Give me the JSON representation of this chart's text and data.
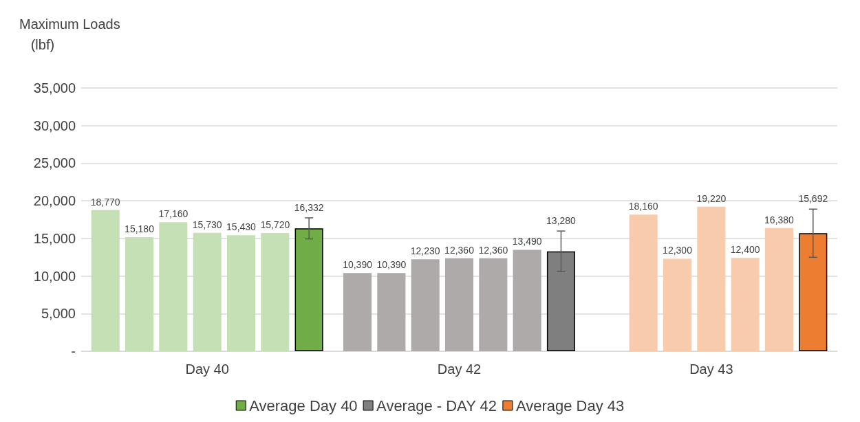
{
  "chart_data": {
    "type": "bar",
    "ylabel": "Maximum Loads (lbf)",
    "categories": [
      "Day 40",
      "Day 42",
      "Day 43"
    ],
    "series": [
      {
        "colors": [
          "#c5e0b4",
          "#aeaaaa",
          "#f8cbad"
        ],
        "values": [
          18770,
          10390,
          null
        ],
        "value_labels": [
          "18,770",
          "10,390",
          null
        ]
      },
      {
        "colors": [
          "#c5e0b4",
          "#aeaaaa",
          "#f8cbad"
        ],
        "values": [
          15180,
          10390,
          18160
        ],
        "value_labels": [
          "15,180",
          "10,390",
          "18,160"
        ]
      },
      {
        "colors": [
          "#c5e0b4",
          "#aeaaaa",
          "#f8cbad"
        ],
        "values": [
          17160,
          12230,
          12300
        ],
        "value_labels": [
          "17,160",
          "12,230",
          "12,300"
        ]
      },
      {
        "colors": [
          "#c5e0b4",
          "#aeaaaa",
          "#f8cbad"
        ],
        "values": [
          15730,
          12360,
          19220
        ],
        "value_labels": [
          "15,730",
          "12,360",
          "19,220"
        ]
      },
      {
        "colors": [
          "#c5e0b4",
          "#aeaaaa",
          "#f8cbad"
        ],
        "values": [
          15430,
          12360,
          12400
        ],
        "value_labels": [
          "15,430",
          "12,360",
          "12,400"
        ]
      },
      {
        "colors": [
          "#c5e0b4",
          "#aeaaaa",
          "#f8cbad"
        ],
        "values": [
          15720,
          13490,
          16380
        ],
        "value_labels": [
          "15,720",
          "13,490",
          "16,380"
        ]
      },
      {
        "name": "Average Day 40",
        "color": "#70ad47",
        "values": [
          16332,
          null,
          null
        ],
        "value_labels": [
          "16,332",
          null,
          null
        ],
        "errors": [
          1400,
          null,
          null
        ]
      },
      {
        "name": "Average - DAY 42",
        "color": "#7f7f7f",
        "values": [
          null,
          13280,
          null
        ],
        "value_labels": [
          null,
          "13,280",
          null
        ],
        "errors": [
          null,
          2700,
          null
        ]
      },
      {
        "name": "Average Day 43",
        "color": "#ed7d31",
        "values": [
          null,
          null,
          15692
        ],
        "value_labels": [
          null,
          null,
          "15,692"
        ],
        "errors": [
          null,
          null,
          3200
        ]
      }
    ],
    "ylim": [
      0,
      35000
    ],
    "yticks": [
      {
        "value": 0,
        "label": "-"
      },
      {
        "value": 5000,
        "label": "5,000"
      },
      {
        "value": 10000,
        "label": "10,000"
      },
      {
        "value": 15000,
        "label": "15,000"
      },
      {
        "value": 20000,
        "label": "20,000"
      },
      {
        "value": 25000,
        "label": "25,000"
      },
      {
        "value": 30000,
        "label": "30,000"
      },
      {
        "value": 35000,
        "label": "35,000"
      }
    ],
    "grid": "y",
    "legend": "bottom"
  }
}
